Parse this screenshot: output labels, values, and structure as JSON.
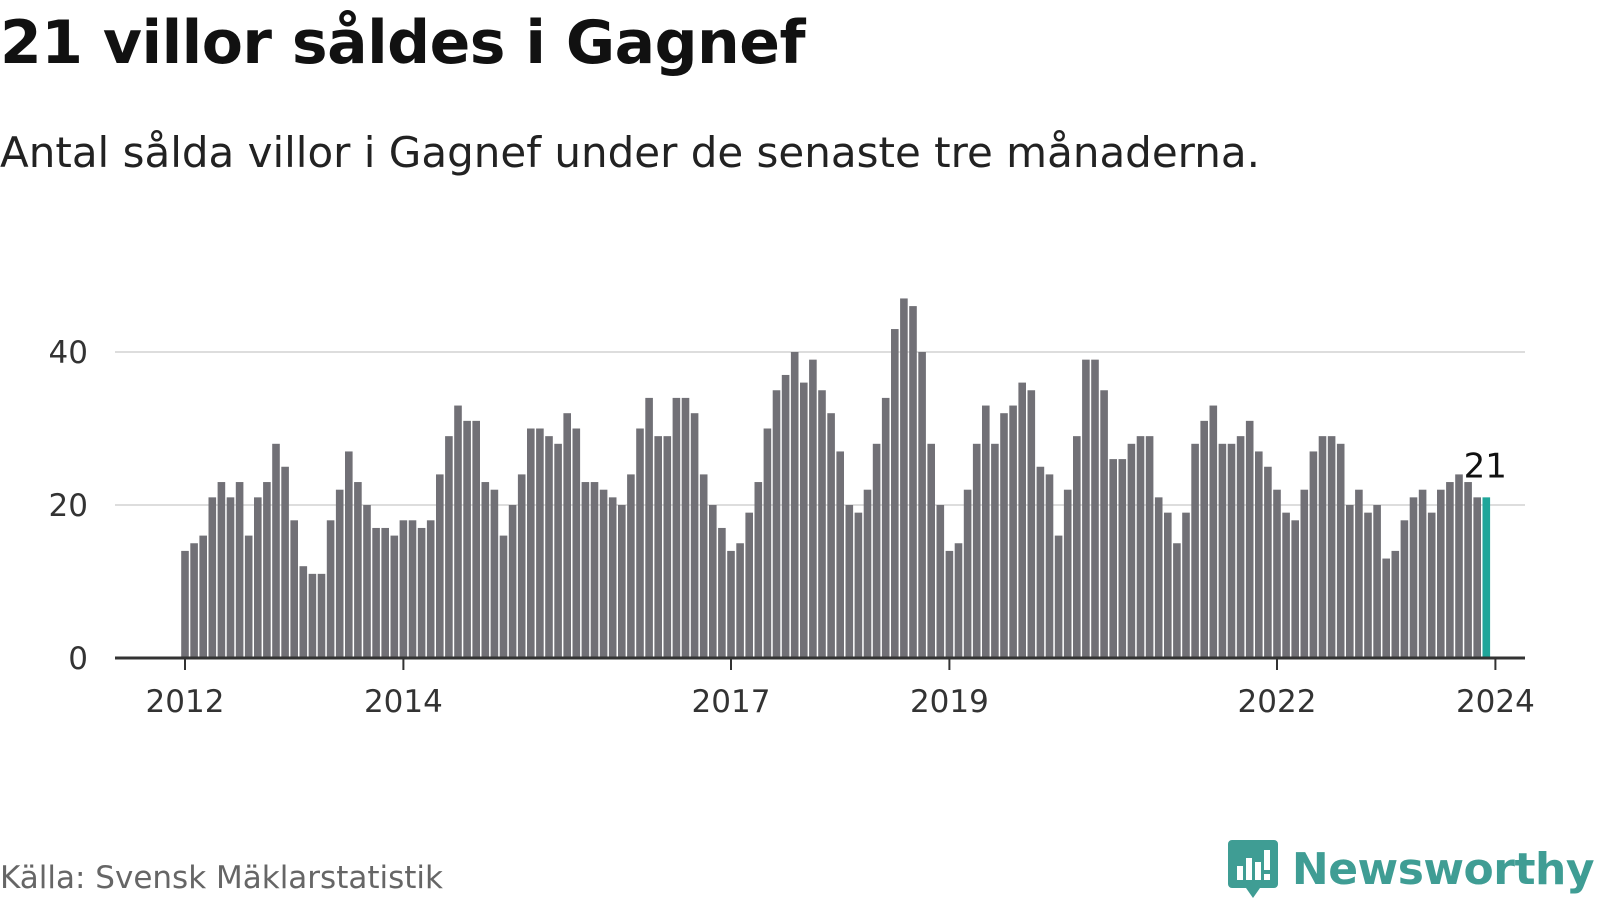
{
  "title": "21 villor såldes i Gagnef",
  "subtitle": "Antal sålda villor i Gagnef under de senaste tre månaderna.",
  "source": "Källa: Svensk Mäklarstatistik",
  "brand": {
    "name": "Newsworthy",
    "icon": "newsworthy-logo-icon"
  },
  "colors": {
    "bar": "#717076",
    "highlight": "#20a69a",
    "grid": "#dddddd",
    "axis": "#333333",
    "brand": "#3f9d94"
  },
  "chart_data": {
    "type": "bar",
    "title": "Antal sålda villor i Gagnef under de senaste tre månaderna.",
    "xlabel": "",
    "ylabel": "",
    "ylim": [
      0,
      48
    ],
    "yticks": [
      0,
      20,
      40
    ],
    "grid": true,
    "start": "2012-01",
    "interval": "month",
    "x_ticks": [
      {
        "label": "2012",
        "index": 0
      },
      {
        "label": "2014",
        "index": 24
      },
      {
        "label": "2017",
        "index": 60
      },
      {
        "label": "2019",
        "index": 84
      },
      {
        "label": "2022",
        "index": 120
      },
      {
        "label": "2024",
        "index": 144
      }
    ],
    "values": [
      14,
      15,
      16,
      21,
      23,
      21,
      23,
      16,
      21,
      23,
      28,
      25,
      18,
      12,
      11,
      11,
      18,
      22,
      27,
      23,
      20,
      17,
      17,
      16,
      18,
      18,
      17,
      18,
      24,
      29,
      33,
      31,
      31,
      23,
      22,
      16,
      20,
      24,
      30,
      30,
      29,
      28,
      32,
      30,
      23,
      23,
      22,
      21,
      20,
      24,
      30,
      34,
      29,
      29,
      34,
      34,
      32,
      24,
      20,
      17,
      14,
      15,
      19,
      23,
      30,
      35,
      37,
      40,
      36,
      39,
      35,
      32,
      27,
      20,
      19,
      22,
      28,
      34,
      43,
      47,
      46,
      40,
      28,
      20,
      14,
      15,
      22,
      28,
      33,
      28,
      32,
      33,
      36,
      35,
      25,
      24,
      16,
      22,
      29,
      39,
      39,
      35,
      26,
      26,
      28,
      29,
      29,
      21,
      19,
      15,
      19,
      28,
      31,
      33,
      28,
      28,
      29,
      31,
      27,
      25,
      22,
      19,
      18,
      22,
      27,
      29,
      29,
      28,
      20,
      22,
      19,
      20,
      13,
      14,
      18,
      21,
      22,
      19,
      22,
      23,
      24,
      23,
      21,
      21
    ],
    "highlight_index": 143,
    "highlight_label": "21"
  }
}
